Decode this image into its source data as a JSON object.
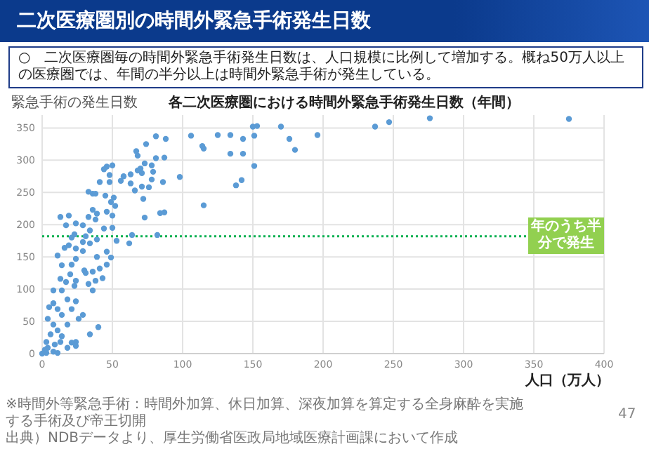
{
  "chart_data": {
    "type": "scatter",
    "title": "各二次医療圏における時間外緊急手術発生日数（年間）",
    "subtitle": "○　二次医療圏毎の時間外緊急手術発生日数は、人口規模に比例して増加する。概ね50万人以上の医療圏では、年間の半分以上は時間外緊急手術が発生している。",
    "xlabel": "人口（万人）",
    "ylabel": "緊急手術の発生日数",
    "annotations": [
      "二次医療圏別の時間外緊急手術発生日数",
      "※時間外等緊急手術：時間外加算、休日加算、深夜加算を算定する全身麻酔を実施する手術及び帝王切開",
      "出典）NDBデータより、厚生労働省医政局地域医療計画課において作成",
      "47"
    ],
    "series": [
      {
        "color": "#5b9bd5",
        "x": [
          125,
          134,
          143,
          134,
          143,
          150,
          153,
          151,
          151,
          138,
          142,
          170,
          176,
          180,
          196,
          237,
          247,
          276,
          375,
          81,
          88,
          106,
          114,
          115,
          98,
          115,
          81,
          87,
          78,
          73,
          67,
          68,
          74,
          86,
          84,
          87,
          73,
          71,
          76,
          78,
          68,
          70,
          71,
          79,
          63,
          58,
          56,
          63,
          66,
          72,
          64,
          62,
          82,
          53,
          46,
          50,
          44,
          48,
          41,
          48,
          36,
          38,
          33,
          45,
          51,
          49,
          52,
          46,
          39,
          36,
          38,
          33,
          50,
          44,
          50,
          34,
          29,
          24,
          19,
          13,
          17,
          23,
          31,
          39,
          34,
          29,
          21,
          19,
          16,
          24,
          29,
          46,
          49,
          39,
          24,
          11,
          21,
          14,
          41,
          46,
          30,
          31,
          36,
          20,
          13,
          17,
          24,
          38,
          43,
          33,
          36,
          23,
          8,
          14,
          8,
          18,
          24,
          11,
          21,
          5,
          14,
          29,
          26,
          4,
          8,
          18,
          11,
          6,
          14,
          40,
          34,
          24,
          21,
          13,
          24,
          3,
          4,
          2,
          8,
          3,
          11,
          0,
          18,
          9
        ],
        "values": [
          339,
          339,
          333,
          310,
          310,
          352,
          353,
          338,
          291,
          261,
          269,
          352,
          333,
          316,
          339,
          352,
          359,
          365,
          364,
          337,
          333,
          338,
          322,
          318,
          274,
          230,
          303,
          304,
          292,
          295,
          314,
          307,
          325,
          266,
          218,
          219,
          211,
          259,
          258,
          270,
          284,
          287,
          280,
          282,
          278,
          275,
          268,
          264,
          253,
          240,
          184,
          171,
          184,
          175,
          290,
          292,
          286,
          277,
          266,
          266,
          248,
          248,
          251,
          245,
          242,
          235,
          229,
          220,
          217,
          223,
          208,
          212,
          214,
          194,
          195,
          191,
          199,
          202,
          214,
          212,
          199,
          185,
          182,
          177,
          171,
          173,
          180,
          168,
          164,
          163,
          159,
          158,
          149,
          150,
          147,
          152,
          138,
          137,
          132,
          138,
          129,
          125,
          127,
          123,
          116,
          111,
          113,
          113,
          117,
          108,
          98,
          105,
          98,
          98,
          78,
          84,
          81,
          69,
          69,
          72,
          60,
          60,
          54,
          54,
          45,
          45,
          36,
          30,
          27,
          41,
          30,
          18,
          17,
          18,
          12,
          18,
          9,
          6,
          3,
          1,
          1,
          0,
          9,
          14
        ]
      }
    ],
    "xlim": [
      0,
      400
    ],
    "ylim": [
      0,
      370
    ],
    "xticks": [
      0,
      50,
      100,
      150,
      200,
      250,
      300,
      350,
      400
    ],
    "yticks": [
      0,
      50,
      100,
      150,
      200,
      250,
      300,
      350
    ],
    "grid": true,
    "marker": "circle",
    "ref_lines": [
      {
        "axis": "y",
        "value": 182,
        "label": "年のうち半分で発生",
        "color": "#00b050",
        "line_style": "dotted"
      }
    ]
  }
}
